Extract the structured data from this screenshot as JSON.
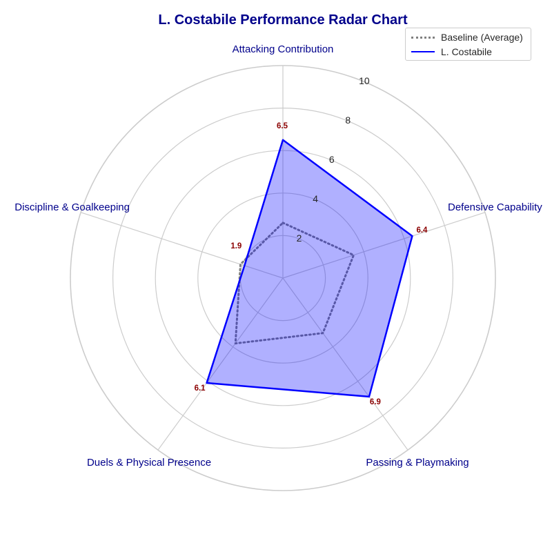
{
  "chart_data": {
    "type": "radar",
    "title": "L. Costabile Performance Radar Chart",
    "categories": [
      "Attacking Contribution",
      "Defensive Capability",
      "Passing & Playmaking",
      "Duels & Physical Presence",
      "Discipline & Goalkeeping"
    ],
    "rlim": [
      0,
      10
    ],
    "radial_ticks": [
      2,
      4,
      6,
      8,
      10
    ],
    "series": [
      {
        "name": "Baseline (Average)",
        "values": [
          2.6,
          3.5,
          3.2,
          3.8,
          2.1
        ],
        "style": "dotted",
        "color": "#808080"
      },
      {
        "name": "L. Costabile",
        "values": [
          6.5,
          6.4,
          6.9,
          6.1,
          1.9
        ],
        "style": "solid",
        "color": "#0000ff",
        "fill": "#0000ff"
      }
    ],
    "data_labels": [
      "6.5",
      "6.4",
      "6.9",
      "6.1",
      "1.9"
    ],
    "grid": true,
    "legend_position": "top-right"
  },
  "colors": {
    "title": "#00008b",
    "category_label": "#00008b",
    "data_label": "#8b0000",
    "grid": "#cccccc",
    "tick_label": "#262626"
  }
}
